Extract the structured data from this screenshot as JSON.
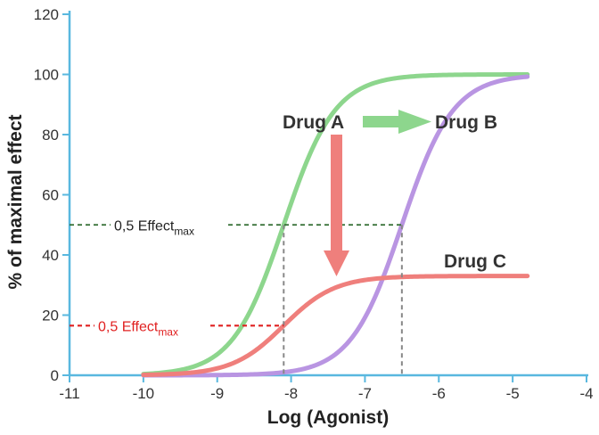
{
  "chart_data": {
    "type": "line",
    "xlabel": "Log (Agonist)",
    "ylabel": "% of maximal effect",
    "xlim": [
      -11,
      -4
    ],
    "ylim": [
      0,
      120
    ],
    "x_ticks": [
      "-11",
      "-10",
      "-9",
      "-8",
      "-7",
      "-6",
      "-5",
      "-4"
    ],
    "y_ticks": [
      "0",
      "20",
      "40",
      "60",
      "80",
      "100",
      "120"
    ],
    "grid": false,
    "legend": "none",
    "series": [
      {
        "name": "Drug A",
        "color": "#8dd68d",
        "ec50_log": -8.1,
        "emax": 100,
        "hill": 1.25,
        "x_range": [
          -10,
          -4.8
        ]
      },
      {
        "name": "Drug B",
        "color": "#b995e2",
        "ec50_log": -6.5,
        "emax": 100,
        "hill": 1.25,
        "x_range": [
          -10,
          -4.8
        ]
      },
      {
        "name": "Drug C",
        "color": "#ef7f7c",
        "ec50_log": -8.1,
        "emax": 33,
        "hill": 1.25,
        "x_range": [
          -10,
          -4.8
        ]
      }
    ],
    "annotations": {
      "half_max_label": "0,5 Effect",
      "half_max_sub": "max",
      "half_max_y": 50,
      "half_max_y_c": 16.5,
      "vline_x": [
        -8.1,
        -6.5
      ],
      "colors": {
        "dark_green": "#2e6b2e",
        "red": "#e02020",
        "gray": "#888888"
      }
    }
  }
}
